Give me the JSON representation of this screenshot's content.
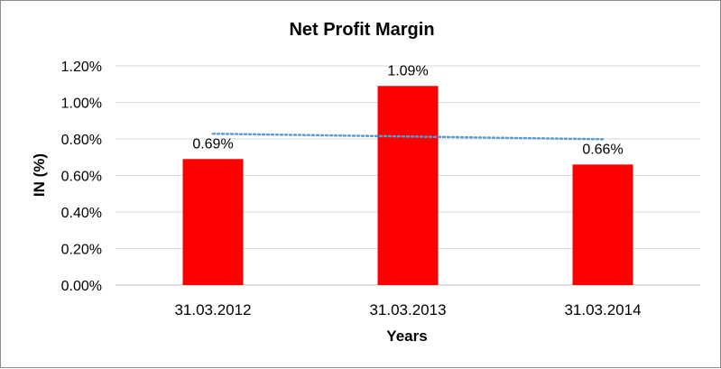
{
  "chart_data": {
    "type": "bar",
    "title": "Net Profit Margin",
    "xlabel": "Years",
    "ylabel": "IN (%)",
    "categories": [
      "31.03.2012",
      "31.03.2013",
      "31.03.2014"
    ],
    "values": [
      0.69,
      1.09,
      0.66
    ],
    "data_labels": [
      "0.69%",
      "1.09%",
      "0.66%"
    ],
    "ylim": [
      0,
      1.2
    ],
    "yticks": [
      0,
      0.2,
      0.4,
      0.6,
      0.8,
      1.0,
      1.2
    ],
    "ytick_labels": [
      "0.00%",
      "0.20%",
      "0.40%",
      "0.60%",
      "0.80%",
      "1.00%",
      "1.20%"
    ],
    "trendline": {
      "type": "linear",
      "style": "dotted",
      "color": "#5b9bd5"
    },
    "bar_color": "#ff0000",
    "grid": true,
    "legend": "none"
  }
}
